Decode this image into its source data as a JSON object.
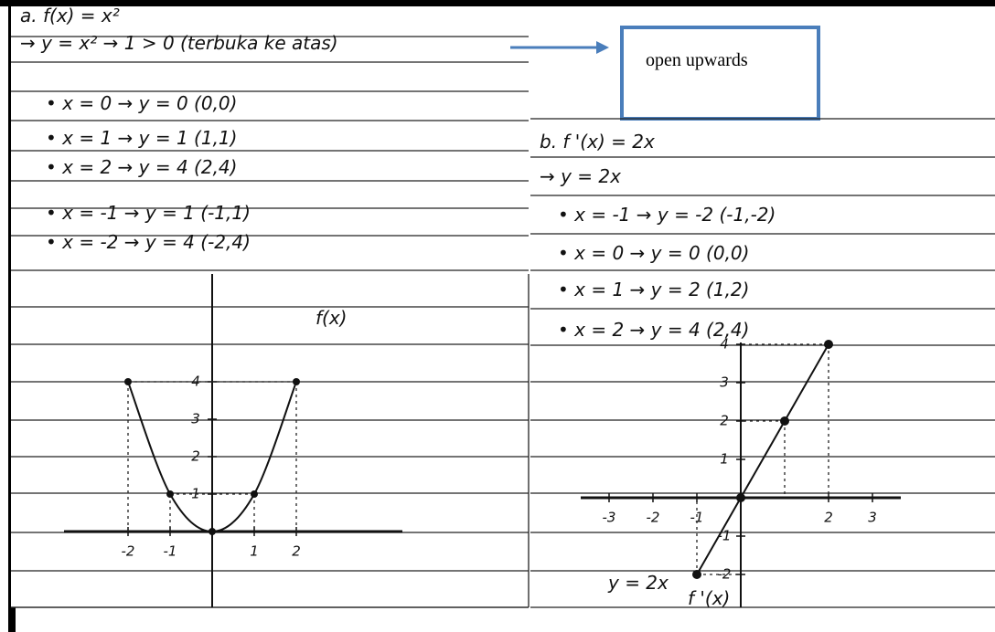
{
  "annotation": "open upwards",
  "left": {
    "lines": [
      "a. f(x) = x²",
      "→ y = x²   → 1 > 0   (terbuka ke atas)",
      "• x = 0 → y = 0   (0,0)",
      "• x = 1 → y = 1   (1,1)",
      "• x = 2 → y = 4   (2,4)",
      "• x = -1 → y = 1   (-1,1)",
      "• x = -2 → y = 4   (-2,4)"
    ],
    "graph": {
      "label": "f(x)",
      "xticks": [
        -2,
        -1,
        1,
        2
      ],
      "yticks": [
        1,
        2,
        3,
        4
      ],
      "points": {
        "x": [
          -2,
          -1,
          0,
          1,
          2
        ],
        "y": [
          4,
          1,
          0,
          1,
          4
        ]
      }
    }
  },
  "right": {
    "lines": [
      "b. f '(x) = 2x",
      "→ y = 2x",
      "• x = -1 → y = -2   (-1,-2)",
      "• x = 0 → y = 0   (0,0)",
      "• x = 1 → y = 2   (1,2)",
      "• x = 2 → y = 4   (2,4)"
    ],
    "graph": {
      "label": "f '(x)",
      "equation": "y = 2x",
      "xticks": [
        -3,
        -2,
        -1,
        2,
        3
      ],
      "yticks": [
        -2,
        -1,
        1,
        2,
        3,
        4
      ],
      "points": {
        "x": [
          -1,
          0,
          1,
          2
        ],
        "y": [
          -2,
          0,
          2,
          4
        ]
      }
    }
  }
}
